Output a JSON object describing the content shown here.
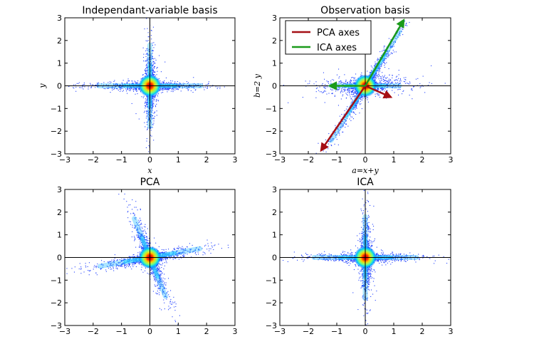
{
  "chart_data": [
    {
      "type": "scatter",
      "title": "Independant-variable basis",
      "xlabel": "x",
      "ylabel": "y",
      "xlim": [
        -3,
        3
      ],
      "ylim": [
        -3,
        3
      ],
      "xticks": [
        "−3",
        "−2",
        "−1",
        "0",
        "1",
        "2",
        "3"
      ],
      "yticks": [
        "3",
        "2",
        "1",
        "0",
        "−1",
        "−2",
        "−3"
      ],
      "grid": false,
      "colormap": "jet density",
      "distribution": {
        "arms": [
          [
            1,
            0
          ],
          [
            0,
            1
          ]
        ],
        "spread": 0.05
      },
      "series": [],
      "arrows": []
    },
    {
      "type": "scatter",
      "title": "Observation basis",
      "xlabel": "a=x+y",
      "ylabel": "b=2 y",
      "xlim": [
        -3,
        3
      ],
      "ylim": [
        -3,
        3
      ],
      "xticks": [
        "−3",
        "−2",
        "−1",
        "0",
        "1",
        "2",
        "3"
      ],
      "yticks": [
        "3",
        "2",
        "1",
        "0",
        "−1",
        "−2",
        "−3"
      ],
      "grid": false,
      "colormap": "jet density",
      "legend": {
        "placement": "top-left",
        "entries": [
          {
            "label": "PCA axes",
            "color": "#a50f15"
          },
          {
            "label": "ICA axes",
            "color": "#1a9a1a"
          }
        ]
      },
      "distribution": {
        "arms": [
          [
            1,
            0
          ],
          [
            1,
            2
          ]
        ],
        "spread": 0.05
      },
      "series": [
        {
          "name": "PCA axes",
          "color": "#a50f15"
        },
        {
          "name": "ICA axes",
          "color": "#1a9a1a"
        }
      ],
      "arrows": [
        {
          "series": "PCA axes",
          "from": [
            0,
            0
          ],
          "to": [
            -1.55,
            -2.85
          ]
        },
        {
          "series": "PCA axes",
          "from": [
            0,
            0
          ],
          "to": [
            0.9,
            -0.5
          ]
        },
        {
          "series": "ICA axes",
          "from": [
            0,
            0
          ],
          "to": [
            1.35,
            2.9
          ]
        },
        {
          "series": "ICA axes",
          "from": [
            0,
            0
          ],
          "to": [
            -1.25,
            0
          ]
        }
      ]
    },
    {
      "type": "scatter",
      "title": "PCA",
      "xlabel": "",
      "ylabel": "",
      "xlim": [
        -3,
        3
      ],
      "ylim": [
        -3,
        3
      ],
      "xticks": [
        "−3",
        "−2",
        "−1",
        "0",
        "1",
        "2",
        "3"
      ],
      "yticks": [
        "3",
        "2",
        "1",
        "0",
        "−1",
        "−2",
        "−3"
      ],
      "grid": false,
      "colormap": "jet density",
      "distribution": {
        "arms": [
          [
            1,
            0.22
          ],
          [
            -0.32,
            1
          ]
        ],
        "spread": 0.07
      },
      "series": [],
      "arrows": []
    },
    {
      "type": "scatter",
      "title": "ICA",
      "xlabel": "",
      "ylabel": "",
      "xlim": [
        -3,
        3
      ],
      "ylim": [
        -3,
        3
      ],
      "xticks": [
        "−3",
        "−2",
        "−1",
        "0",
        "1",
        "2",
        "3"
      ],
      "yticks": [
        "3",
        "2",
        "1",
        "0",
        "−1",
        "−2",
        "−3"
      ],
      "grid": false,
      "colormap": "jet density",
      "distribution": {
        "arms": [
          [
            1,
            0
          ],
          [
            0,
            1
          ]
        ],
        "spread": 0.05
      },
      "series": [],
      "arrows": []
    }
  ]
}
